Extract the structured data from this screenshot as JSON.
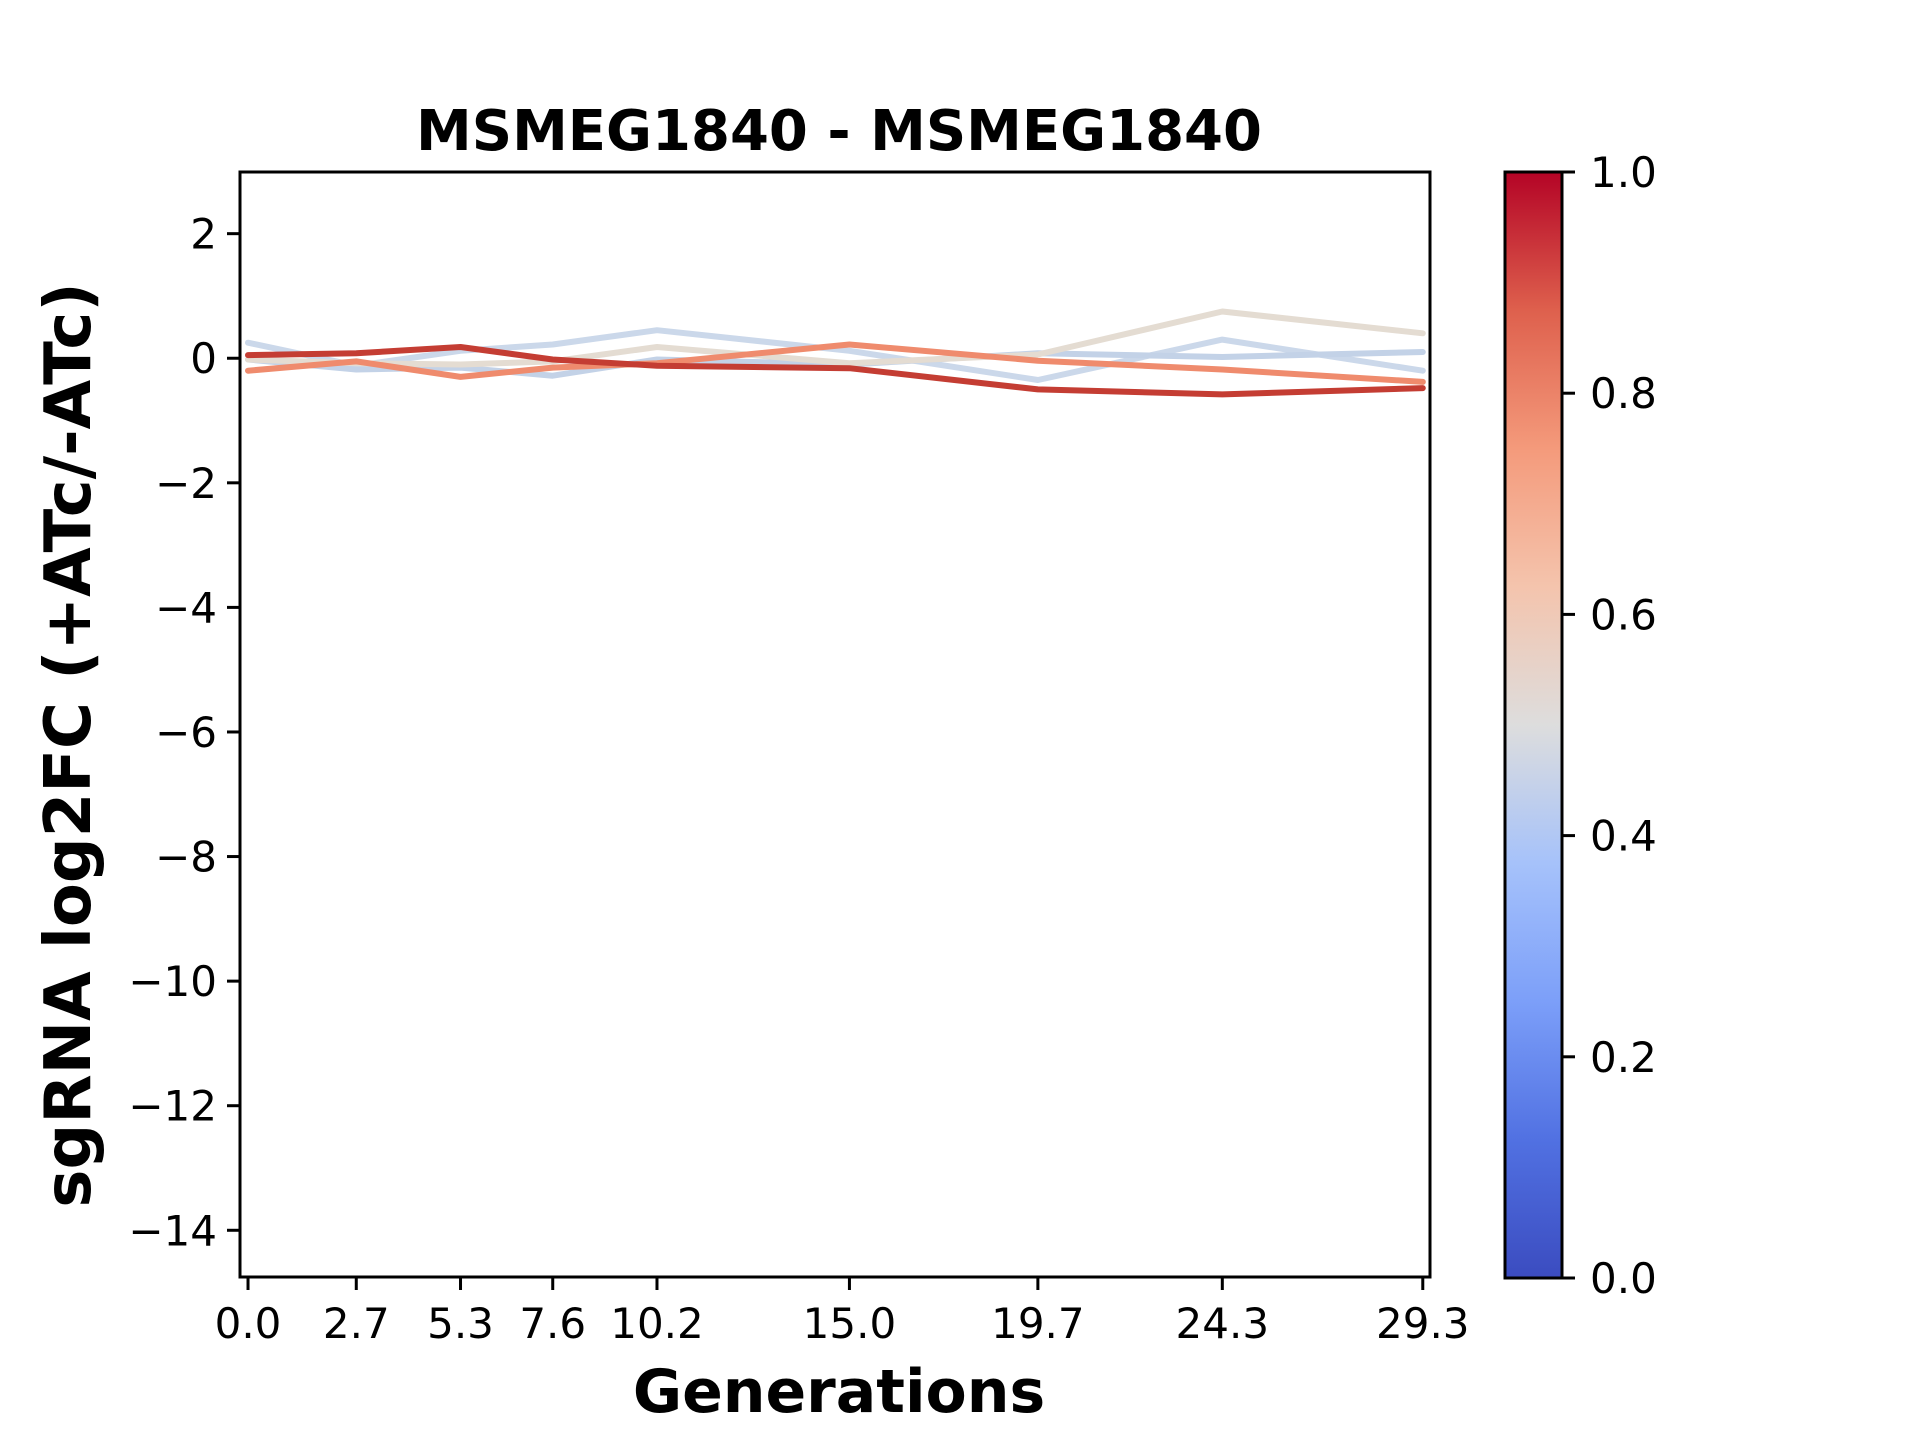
{
  "figure": {
    "title": "MSMEG1840 - MSMEG1840",
    "xlabel": "Generations",
    "ylabel": "sgRNA log2FC (+ATc/-ATc)"
  },
  "chart_data": {
    "type": "line",
    "title": "MSMEG1840 - MSMEG1840",
    "xlabel": "Generations",
    "ylabel": "sgRNA log2FC (+ATc/-ATc)",
    "grid": false,
    "legend": false,
    "x": [
      0.0,
      2.7,
      5.3,
      7.6,
      10.2,
      15.0,
      19.7,
      24.3,
      29.3
    ],
    "xtick_values": [
      0.0,
      2.7,
      5.3,
      7.6,
      10.2,
      15.0,
      19.7,
      24.3,
      29.3
    ],
    "xtick_labels": [
      "0.0",
      "2.7",
      "5.3",
      "7.6",
      "10.2",
      "15.0",
      "19.7",
      "24.3",
      "29.3"
    ],
    "ytick_values": [
      2,
      0,
      -2,
      -4,
      -6,
      -8,
      -10,
      -12,
      -14
    ],
    "ytick_labels": [
      "2",
      "0",
      "−2",
      "−4",
      "−6",
      "−8",
      "−10",
      "−12",
      "−14"
    ],
    "xlim": [
      -0.2,
      29.48
    ],
    "ylim": [
      -14.75,
      2.99
    ],
    "series": [
      {
        "id": "sgRNA-line-1",
        "colormap_value": 0.44,
        "color": "#cbd8ea",
        "values": [
          0.25,
          -0.12,
          0.12,
          0.22,
          0.45,
          0.12,
          -0.35,
          0.3,
          -0.2
        ]
      },
      {
        "id": "sgRNA-line-2",
        "colormap_value": 0.41,
        "color": "#c3d2e7",
        "values": [
          -0.02,
          -0.18,
          -0.15,
          -0.28,
          -0.02,
          -0.1,
          0.08,
          0.02,
          0.1
        ]
      },
      {
        "id": "sgRNA-line-3",
        "colormap_value": 0.57,
        "color": "#e4dcd2",
        "values": [
          -0.02,
          -0.08,
          -0.1,
          -0.05,
          0.18,
          -0.08,
          0.06,
          0.75,
          0.4
        ]
      },
      {
        "id": "sgRNA-line-4",
        "colormap_value": 0.79,
        "color": "#ef8b6d",
        "values": [
          -0.2,
          -0.05,
          -0.3,
          -0.15,
          -0.08,
          0.22,
          -0.04,
          -0.18,
          -0.38
        ]
      },
      {
        "id": "sgRNA-line-5",
        "colormap_value": 0.93,
        "color": "#c43d33",
        "values": [
          0.05,
          0.08,
          0.18,
          -0.02,
          -0.12,
          -0.16,
          -0.5,
          -0.58,
          -0.48
        ]
      }
    ],
    "colorbar": {
      "cmap": "coolwarm",
      "min": 0.0,
      "max": 1.0,
      "tick_values": [
        0.0,
        0.2,
        0.4,
        0.6,
        0.8,
        1.0
      ],
      "tick_labels": [
        "0.0",
        "0.2",
        "0.4",
        "0.6",
        "0.8",
        "1.0"
      ],
      "gradient_stops": [
        {
          "pos": 0.0,
          "color": "#3b4cc0"
        },
        {
          "pos": 0.125,
          "color": "#5171e2"
        },
        {
          "pos": 0.25,
          "color": "#7c9ff9"
        },
        {
          "pos": 0.375,
          "color": "#a6c2fa"
        },
        {
          "pos": 0.5,
          "color": "#dddddd"
        },
        {
          "pos": 0.625,
          "color": "#f4c4ad"
        },
        {
          "pos": 0.75,
          "color": "#f49a7b"
        },
        {
          "pos": 0.875,
          "color": "#de604d"
        },
        {
          "pos": 1.0,
          "color": "#b40426"
        }
      ]
    }
  }
}
